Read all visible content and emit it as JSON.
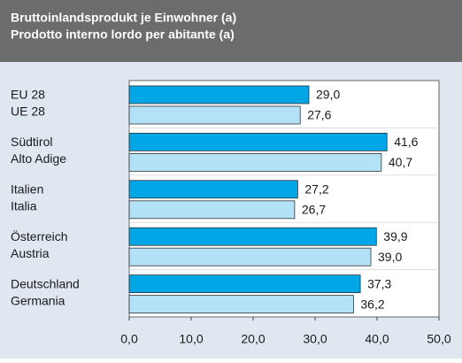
{
  "chart_data": {
    "type": "bar",
    "orientation": "horizontal",
    "title": "Bruttoinlandsprodukt je Einwohner (a)",
    "subtitle": "Prodotto interno lordo per abitante (a)",
    "categories": [
      [
        "EU 28",
        "UE 28"
      ],
      [
        "Südtirol",
        "Alto Adige"
      ],
      [
        "Italien",
        "Italia"
      ],
      [
        "Österreich",
        "Austria"
      ],
      [
        "Deutschland",
        "Germania"
      ]
    ],
    "series": [
      {
        "color": "#00a6e6",
        "values": [
          29.0,
          41.6,
          27.2,
          39.9,
          37.3
        ],
        "value_labels": [
          "29,0",
          "41,6",
          "27,2",
          "39,9",
          "37,3"
        ]
      },
      {
        "color": "#b3e2f7",
        "values": [
          27.6,
          40.7,
          26.7,
          39.0,
          36.2
        ],
        "value_labels": [
          "27,6",
          "40,7",
          "26,7",
          "39,0",
          "36,2"
        ]
      }
    ],
    "xlim": [
      0,
      50
    ],
    "xticks": [
      {
        "value": 0,
        "label": "0,0"
      },
      {
        "value": 10,
        "label": "10,0"
      },
      {
        "value": 20,
        "label": "20,0"
      },
      {
        "value": 30,
        "label": "30,0"
      },
      {
        "value": 40,
        "label": "40,0"
      },
      {
        "value": 50,
        "label": "50,0"
      }
    ],
    "grid": false
  }
}
